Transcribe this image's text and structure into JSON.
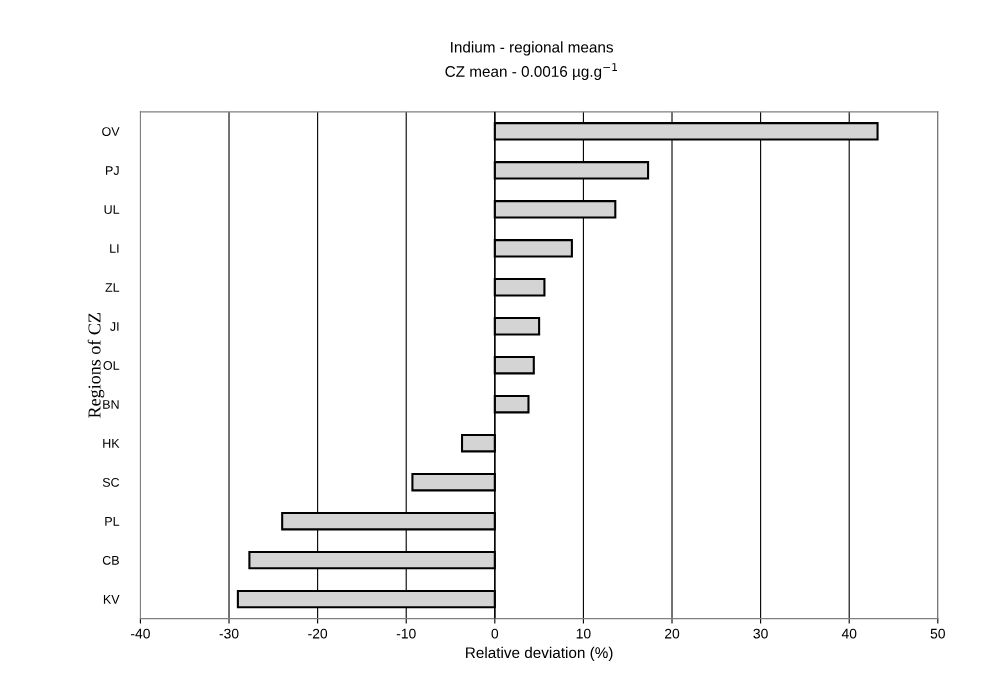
{
  "chart_data": {
    "type": "bar",
    "orientation": "horizontal",
    "title": "Indium - regional means",
    "subtitle": "CZ mean - 0.0016 µg.g$^{−1}$",
    "xlabel": "Relative deviation (%)",
    "ylabel": "Regions of CZ",
    "categories": [
      "OV",
      "PJ",
      "UL",
      "LI",
      "ZL",
      "JI",
      "OL",
      "BN",
      "HK",
      "SC",
      "PL",
      "CB",
      "KV"
    ],
    "values": [
      43.2,
      17.3,
      13.6,
      8.7,
      5.6,
      5.0,
      4.4,
      3.8,
      -3.7,
      -9.3,
      -24.0,
      -27.7,
      -29.0
    ],
    "color": "#d4d4d4",
    "xlim": [
      -40,
      50
    ],
    "xticks": [
      -40,
      -30,
      -20,
      -10,
      0,
      10,
      20,
      30,
      40,
      50
    ],
    "grid": "x"
  }
}
